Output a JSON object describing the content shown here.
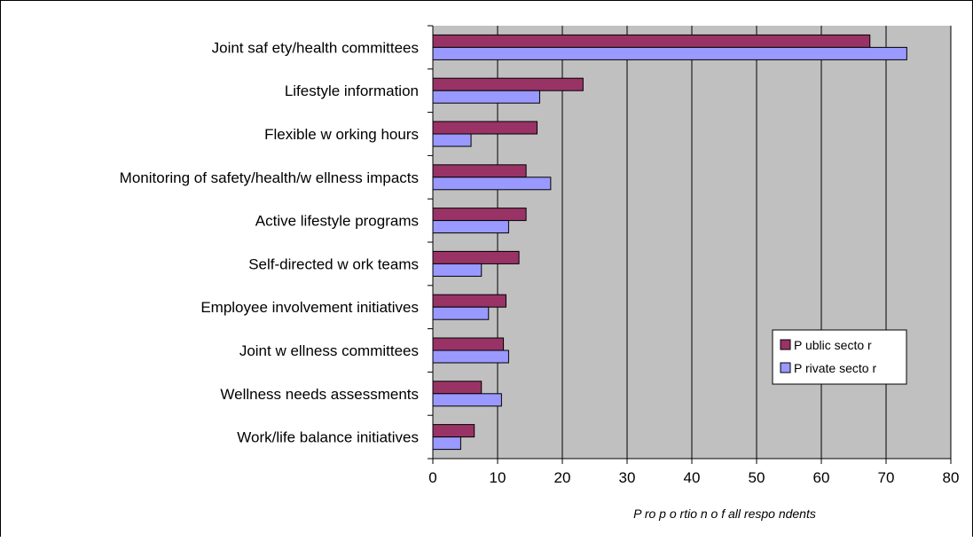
{
  "chart_data": {
    "type": "bar",
    "orientation": "horizontal",
    "categories": [
      "Joint saf ety/health committees",
      "Lifestyle information",
      "Flexible w orking hours",
      "Monitoring of safety/health/w ellness impacts",
      "Active lifestyle programs",
      "Self-directed w ork teams",
      "Employee involvement initiatives",
      "Joint w ellness committees",
      "Wellness needs assessments",
      "Work/life balance initiatives"
    ],
    "series": [
      {
        "name": "P ublic secto r",
        "color": "#993366",
        "values": [
          67.5,
          23.2,
          16.1,
          14.4,
          14.4,
          13.3,
          11.3,
          10.9,
          7.5,
          6.4
        ]
      },
      {
        "name": "P rivate secto r",
        "color": "#9999ff",
        "values": [
          73.2,
          16.5,
          5.9,
          18.2,
          11.7,
          7.5,
          8.6,
          11.7,
          10.6,
          4.3
        ]
      }
    ],
    "xlabel": "P ro p o rtio n o f all respo ndents",
    "ylabel": "",
    "xlim": [
      0,
      80
    ],
    "xticks": [
      "0",
      "10",
      "20",
      "30",
      "40",
      "50",
      "60",
      "70",
      "80"
    ],
    "grid": true,
    "plot_background": "#c0c0c0",
    "legend_position": "right"
  }
}
